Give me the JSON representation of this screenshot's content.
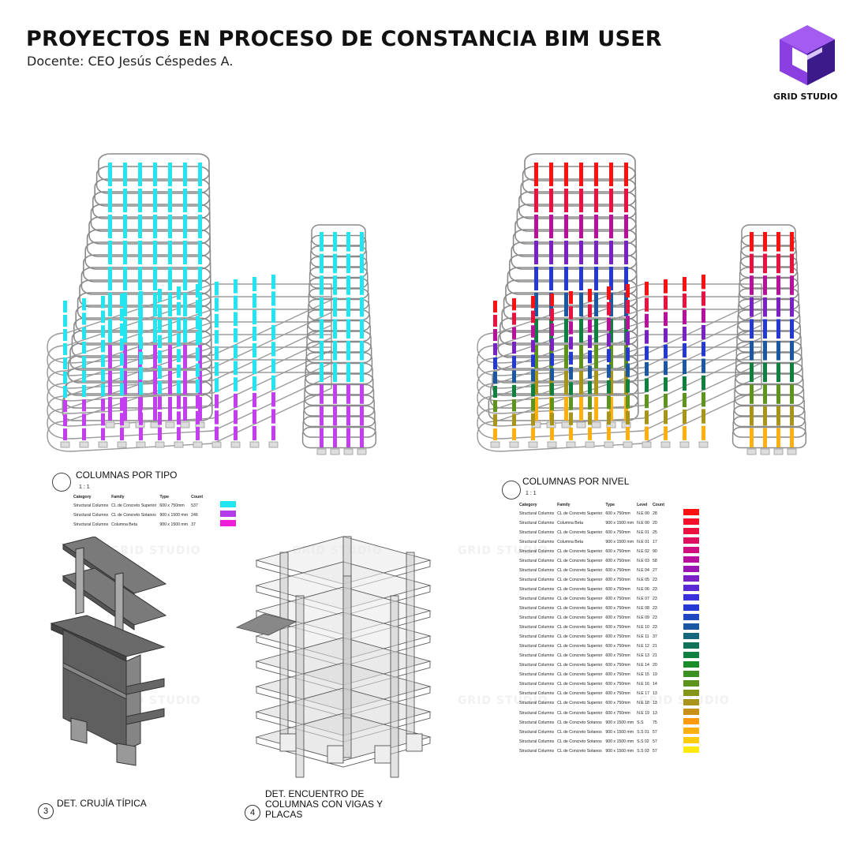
{
  "header": {
    "title": "PROYECTOS EN PROCESO DE CONSTANCIA BIM USER",
    "subtitle": "Docente: CEO Jesús Céspedes A.",
    "logo_text": "GRID STUDIO",
    "logo_colors": {
      "light": "#8c3fe0",
      "dark": "#3b1a8a",
      "mid": "#6a28c4"
    }
  },
  "watermark": "GRID STUDIO",
  "view_left": {
    "title": "COLUMNAS POR TIPO",
    "scale": "1 : 1",
    "headers": [
      "Category",
      "Family",
      "Type",
      "Count"
    ],
    "rows": [
      {
        "category": "Structural Columns",
        "family": "CL de Concreto Superior",
        "type": "600 x 750mm",
        "count": "537",
        "color": "#22e6ef"
      },
      {
        "category": "Structural Columns",
        "family": "CL de Concreto Sotanos",
        "type": "900 x 1500 mm",
        "count": "246",
        "color": "#b43bea"
      },
      {
        "category": "Structural Columns",
        "family": "Columna Beta",
        "type": "900 x 1500 mm",
        "count": "37",
        "color": "#ef1cd8"
      }
    ]
  },
  "view_right": {
    "title": "COLUMNAS POR NIVEL",
    "scale": "1 : 1",
    "headers": [
      "Category",
      "Family",
      "Type",
      "Level",
      "Count"
    ],
    "rows": [
      {
        "category": "Structural Columns",
        "family": "CL de Concreto Superior",
        "type": "600 x 750mm",
        "level": "N.E 00",
        "count": "28",
        "color": "#ff1010"
      },
      {
        "category": "Structural Columns",
        "family": "Columna Beta",
        "type": "900 x 1500 mm",
        "level": "N.E 00",
        "count": "20",
        "color": "#f4102a"
      },
      {
        "category": "Structural Columns",
        "family": "CL de Concreto Superior",
        "type": "600 x 750mm",
        "level": "N.E 01",
        "count": "25",
        "color": "#ea1040"
      },
      {
        "category": "Structural Columns",
        "family": "Columna Beta",
        "type": "900 x 1500 mm",
        "level": "N.E 01",
        "count": "17",
        "color": "#de1060"
      },
      {
        "category": "Structural Columns",
        "family": "CL de Concreto Superior",
        "type": "600 x 750mm",
        "level": "N.E 02",
        "count": "90",
        "color": "#d01080"
      },
      {
        "category": "Structural Columns",
        "family": "CL de Concreto Superior",
        "type": "600 x 750mm",
        "level": "N.E 03",
        "count": "58",
        "color": "#b8109a"
      },
      {
        "category": "Structural Columns",
        "family": "CL de Concreto Superior",
        "type": "600 x 750mm",
        "level": "N.E 04",
        "count": "27",
        "color": "#9a16b0"
      },
      {
        "category": "Structural Columns",
        "family": "CL de Concreto Superior",
        "type": "600 x 750mm",
        "level": "N.E 05",
        "count": "23",
        "color": "#7a20c4"
      },
      {
        "category": "Structural Columns",
        "family": "CL de Concreto Superior",
        "type": "600 x 750mm",
        "level": "N.E 06",
        "count": "23",
        "color": "#5a28d4"
      },
      {
        "category": "Structural Columns",
        "family": "CL de Concreto Superior",
        "type": "600 x 750mm",
        "level": "N.E 07",
        "count": "23",
        "color": "#3a30dc"
      },
      {
        "category": "Structural Columns",
        "family": "CL de Concreto Superior",
        "type": "600 x 750mm",
        "level": "N.E 08",
        "count": "23",
        "color": "#2438d4"
      },
      {
        "category": "Structural Columns",
        "family": "CL de Concreto Superior",
        "type": "600 x 750mm",
        "level": "N.E 09",
        "count": "23",
        "color": "#1e48c0"
      },
      {
        "category": "Structural Columns",
        "family": "CL de Concreto Superior",
        "type": "600 x 750mm",
        "level": "N.E 10",
        "count": "23",
        "color": "#1a58a4"
      },
      {
        "category": "Structural Columns",
        "family": "CL de Concreto Superior",
        "type": "600 x 750mm",
        "level": "N.E 11",
        "count": "37",
        "color": "#16667e"
      },
      {
        "category": "Structural Columns",
        "family": "CL de Concreto Superior",
        "type": "600 x 750mm",
        "level": "N.E 12",
        "count": "21",
        "color": "#127258"
      },
      {
        "category": "Structural Columns",
        "family": "CL de Concreto Superior",
        "type": "600 x 750mm",
        "level": "N.E 13",
        "count": "21",
        "color": "#108040"
      },
      {
        "category": "Structural Columns",
        "family": "CL de Concreto Superior",
        "type": "600 x 750mm",
        "level": "N.E 14",
        "count": "20",
        "color": "#1a8c2a"
      },
      {
        "category": "Structural Columns",
        "family": "CL de Concreto Superior",
        "type": "600 x 750mm",
        "level": "N.E 15",
        "count": "19",
        "color": "#3a9020"
      },
      {
        "category": "Structural Columns",
        "family": "CL de Concreto Superior",
        "type": "600 x 750mm",
        "level": "N.E 16",
        "count": "14",
        "color": "#5e941c"
      },
      {
        "category": "Structural Columns",
        "family": "CL de Concreto Superior",
        "type": "600 x 750mm",
        "level": "N.E 17",
        "count": "13",
        "color": "#84961a"
      },
      {
        "category": "Structural Columns",
        "family": "CL de Concreto Superior",
        "type": "600 x 750mm",
        "level": "N.E 18",
        "count": "13",
        "color": "#a89418"
      },
      {
        "category": "Structural Columns",
        "family": "CL de Concreto Superior",
        "type": "600 x 750mm",
        "level": "N.E 19",
        "count": "13",
        "color": "#c89016"
      },
      {
        "category": "Structural Columns",
        "family": "CL de Concreto Sotanos",
        "type": "900 x 1500 mm",
        "level": "S.S",
        "count": "75",
        "color": "#ff9a10"
      },
      {
        "category": "Structural Columns",
        "family": "CL de Concreto Sotanos",
        "type": "900 x 1500 mm",
        "level": "S.S 01",
        "count": "57",
        "color": "#ffb010"
      },
      {
        "category": "Structural Columns",
        "family": "CL de Concreto Sotanos",
        "type": "900 x 1500 mm",
        "level": "S.S 02",
        "count": "57",
        "color": "#ffcc10"
      },
      {
        "category": "Structural Columns",
        "family": "CL de Concreto Sotanos",
        "type": "900 x 1500 mm",
        "level": "S.S 03",
        "count": "57",
        "color": "#ffe810"
      }
    ]
  },
  "details": [
    {
      "number": "3",
      "label": "DET. CRUJÍA TÍPICA"
    },
    {
      "number": "4",
      "label_lines": [
        "DET. ENCUENTRO DE",
        "COLUMNAS CON VIGAS Y",
        "PLACAS"
      ]
    }
  ]
}
